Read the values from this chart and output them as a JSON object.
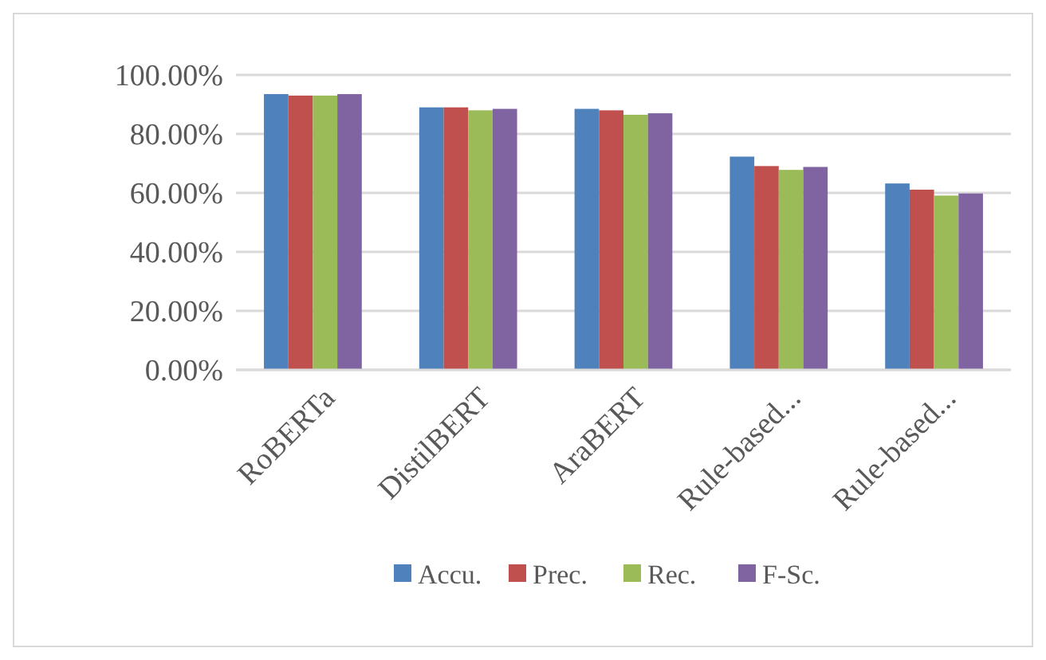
{
  "chart_data": {
    "type": "bar",
    "categories": [
      "RoBERTa",
      "DistilBERT",
      "AraBERT",
      "Rule-based...",
      "Rule-based..."
    ],
    "series": [
      {
        "name": "Accu.",
        "color": "#4f81bd",
        "values": [
          93.5,
          89,
          88.5,
          72.3,
          63.2
        ]
      },
      {
        "name": "Prec.",
        "color": "#c0504d",
        "values": [
          93,
          89,
          88,
          69.1,
          61.1
        ]
      },
      {
        "name": "Rec.",
        "color": "#9bbb59",
        "values": [
          93,
          88,
          86.5,
          67.8,
          59.1
        ]
      },
      {
        "name": "F-Sc.",
        "color": "#8064a2",
        "values": [
          93.5,
          88.5,
          87,
          68.8,
          59.8
        ]
      }
    ],
    "ylim": [
      0,
      100
    ],
    "yticks": [
      {
        "value": 0,
        "label": "0.00%"
      },
      {
        "value": 20,
        "label": "20.00%"
      },
      {
        "value": 40,
        "label": "40.00%"
      },
      {
        "value": 60,
        "label": "60.00%"
      },
      {
        "value": 80,
        "label": "80.00%"
      },
      {
        "value": 100,
        "label": "100.00%"
      }
    ],
    "grid": "y",
    "legend": "bottom"
  }
}
